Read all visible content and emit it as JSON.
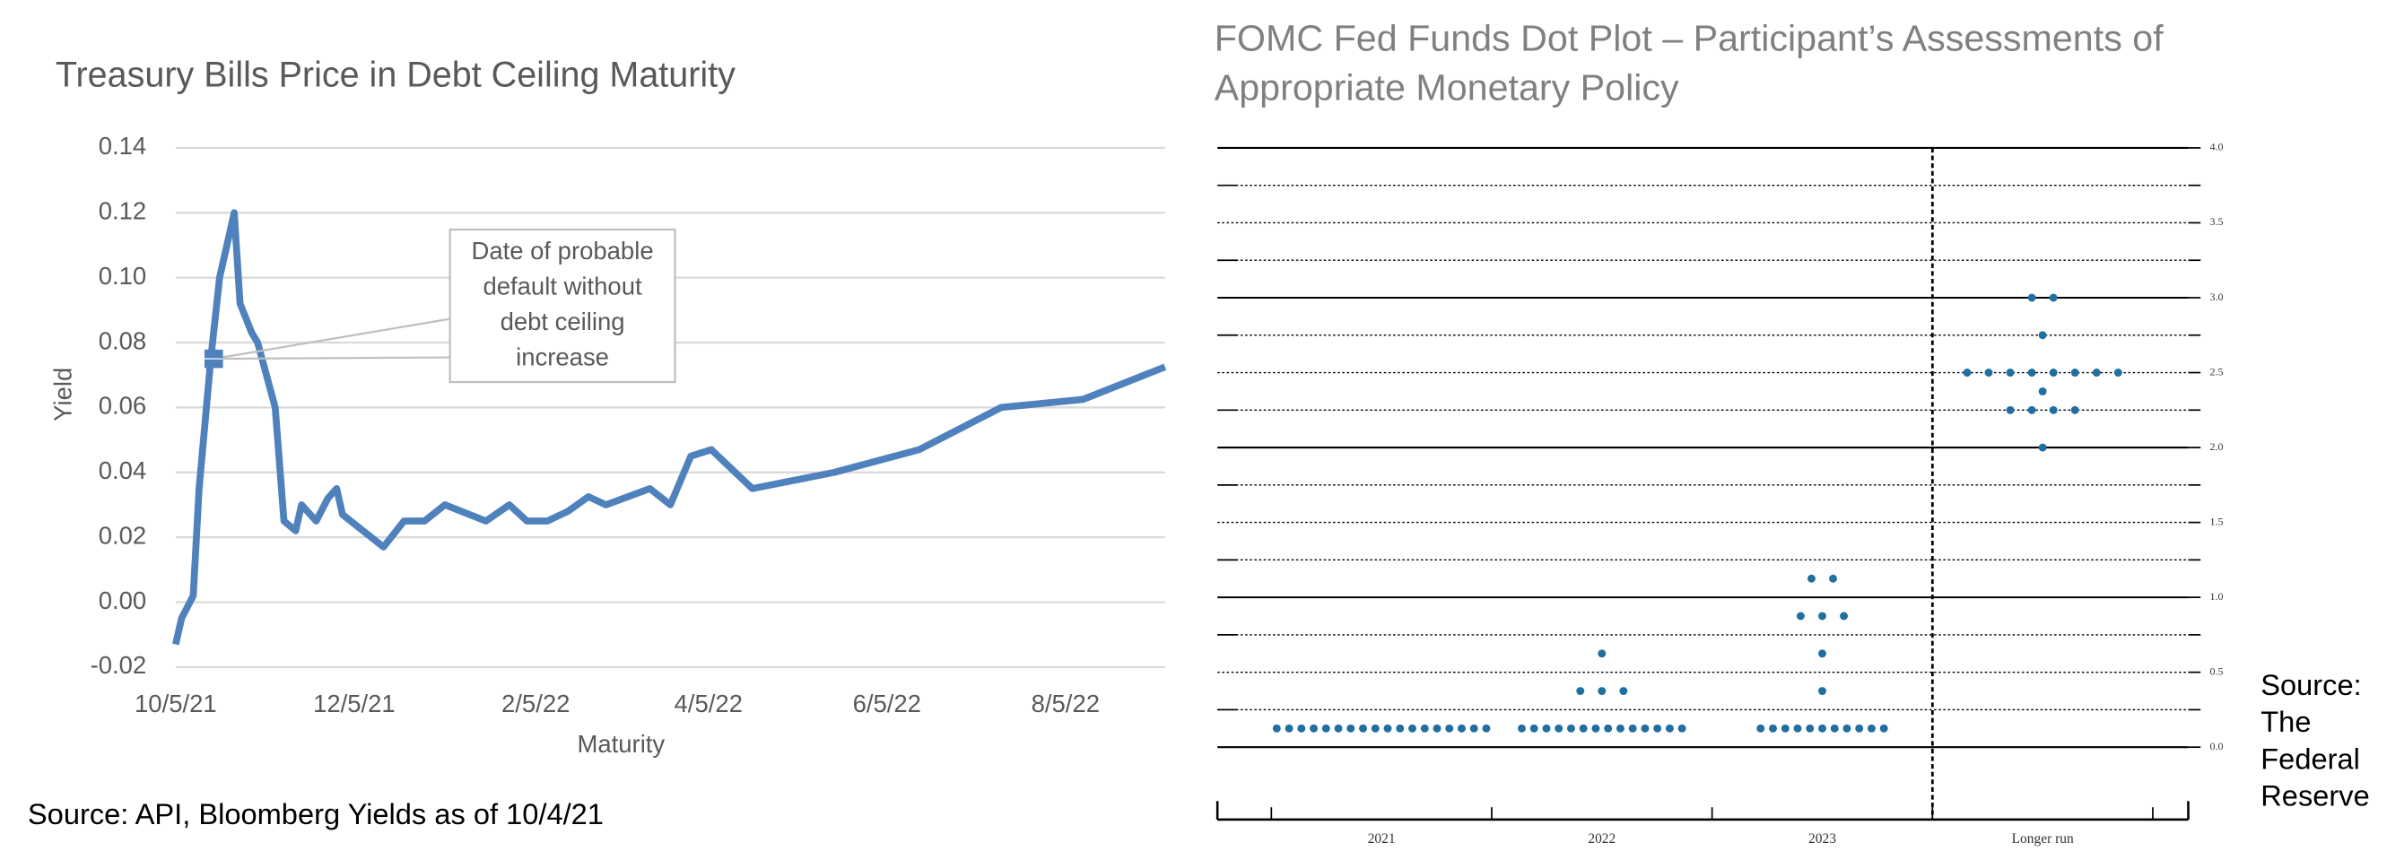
{
  "chart_data": [
    {
      "type": "line",
      "title": "Treasury Bills Price in Debt Ceiling Maturity",
      "xlabel": "Maturity",
      "ylabel": "Yield",
      "source": "Source: API, Bloomberg Yields as of 10/4/21",
      "x": [
        "2021-10-05",
        "2021-10-07",
        "2021-10-11",
        "2021-10-13",
        "2021-10-17",
        "2021-10-20",
        "2021-10-25",
        "2021-10-27",
        "2021-10-31",
        "2021-11-02",
        "2021-11-08",
        "2021-11-11",
        "2021-11-15",
        "2021-11-17",
        "2021-11-22",
        "2021-11-26",
        "2021-11-29",
        "2021-12-01",
        "2021-12-15",
        "2021-12-22",
        "2021-12-29",
        "2022-01-05",
        "2022-01-19",
        "2022-01-27",
        "2022-02-02",
        "2022-02-09",
        "2022-02-16",
        "2022-02-23",
        "2022-03-01",
        "2022-03-16",
        "2022-03-23",
        "2022-03-30",
        "2022-04-06",
        "2022-04-20",
        "2022-05-18",
        "2022-06-16",
        "2022-07-14",
        "2022-08-11",
        "2022-09-08"
      ],
      "values": [
        -0.013,
        -0.005,
        0.002,
        0.035,
        0.075,
        0.1,
        0.12,
        0.092,
        0.083,
        0.08,
        0.06,
        0.025,
        0.022,
        0.03,
        0.025,
        0.032,
        0.035,
        0.027,
        0.017,
        0.025,
        0.025,
        0.03,
        0.025,
        0.03,
        0.025,
        0.025,
        0.028,
        0.0325,
        0.03,
        0.035,
        0.03,
        0.045,
        0.047,
        0.035,
        0.04,
        0.047,
        0.06,
        0.0625,
        0.0725
      ],
      "color": "#4f81bd",
      "xlim": [
        "2021-10-05",
        "2022-09-08"
      ],
      "xticks": [
        {
          "value": "2021-10-05",
          "label": "10/5/21"
        },
        {
          "value": "2021-12-05",
          "label": "12/5/21"
        },
        {
          "value": "2022-02-05",
          "label": "2/5/22"
        },
        {
          "value": "2022-04-05",
          "label": "4/5/22"
        },
        {
          "value": "2022-06-05",
          "label": "6/5/22"
        },
        {
          "value": "2022-08-05",
          "label": "8/5/22"
        }
      ],
      "ylim": [
        -0.02,
        0.14
      ],
      "yticks": [
        -0.02,
        {
          "value": 0,
          "label": "0.00"
        },
        0.02,
        0.04,
        0.06,
        0.08,
        {
          "value": 0.1,
          "label": "0.10"
        },
        0.12,
        0.14
      ],
      "grid": true,
      "annotation": {
        "text": [
          "Date of probable",
          "default without",
          "debt ceiling",
          "increase"
        ],
        "x": "2021-10-18",
        "y": 0.075
      }
    },
    {
      "type": "dot_plot",
      "title": "FOMC Fed Funds Dot Plot – Participant’s Assessments of Appropriate Monetary Policy",
      "source": "Source: The Federal Reserve",
      "categories": [
        "2021",
        "2022",
        "2023",
        "Longer run"
      ],
      "dots": [
        [
          0.125,
          0.125,
          0.125,
          0.125,
          0.125,
          0.125,
          0.125,
          0.125,
          0.125,
          0.125,
          0.125,
          0.125,
          0.125,
          0.125,
          0.125,
          0.125,
          0.125,
          0.125
        ],
        [
          0.125,
          0.125,
          0.125,
          0.125,
          0.125,
          0.125,
          0.125,
          0.125,
          0.125,
          0.125,
          0.125,
          0.125,
          0.125,
          0.125,
          0.375,
          0.375,
          0.375,
          0.625
        ],
        [
          0.125,
          0.125,
          0.125,
          0.125,
          0.125,
          0.125,
          0.125,
          0.125,
          0.125,
          0.125,
          0.125,
          0.375,
          0.625,
          0.875,
          0.875,
          0.875,
          1.125,
          1.125
        ],
        [
          2,
          2.25,
          2.25,
          2.25,
          2.25,
          2.375,
          2.5,
          2.5,
          2.5,
          2.5,
          2.5,
          2.5,
          2.5,
          2.5,
          2.75,
          3,
          3
        ]
      ],
      "color": "#1f6fa0",
      "ylim": [
        0,
        4
      ],
      "yticks": [
        {
          "value": 0,
          "label": "0.0"
        },
        0.5,
        {
          "value": 1,
          "label": "1.0"
        },
        1.5,
        {
          "value": 2,
          "label": "2.0"
        },
        2.5,
        {
          "value": 3,
          "label": "3.0"
        },
        3.5,
        {
          "value": 4,
          "label": "4.0"
        }
      ],
      "grid": true
    }
  ]
}
